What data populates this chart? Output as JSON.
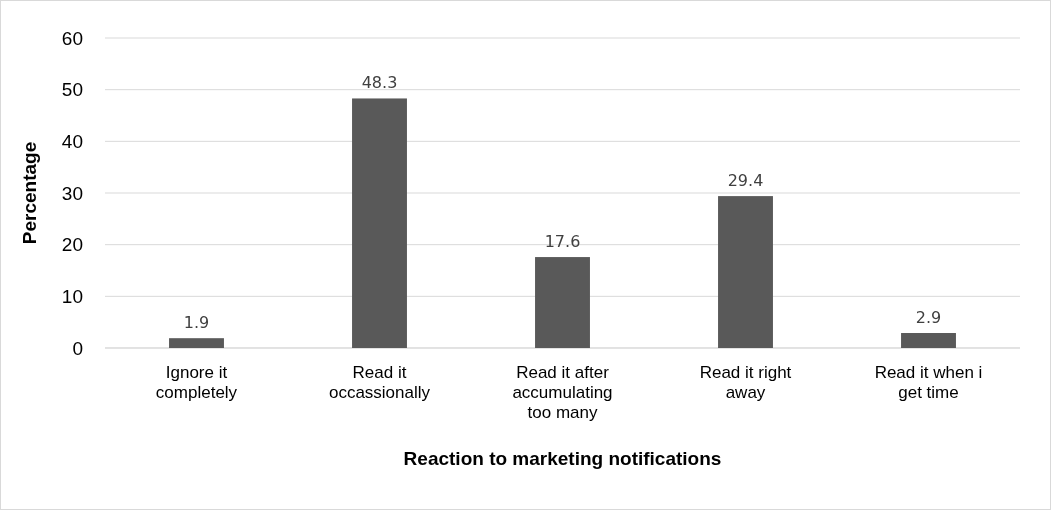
{
  "chart_data": {
    "type": "bar",
    "xlabel": "Reaction to marketing notifications",
    "ylabel": "Percentage",
    "categories": [
      "Ignore it completely",
      "Read it occassionally",
      "Read it after accumulating too many",
      "Read it right away",
      "Read it when i get time"
    ],
    "values": [
      1.9,
      48.3,
      17.6,
      29.4,
      2.9
    ],
    "color": "#595959",
    "data_labels": true,
    "ylim": [
      0,
      60
    ],
    "yticks": [
      0,
      10,
      20,
      30,
      40,
      50,
      60
    ],
    "grid": "y"
  }
}
